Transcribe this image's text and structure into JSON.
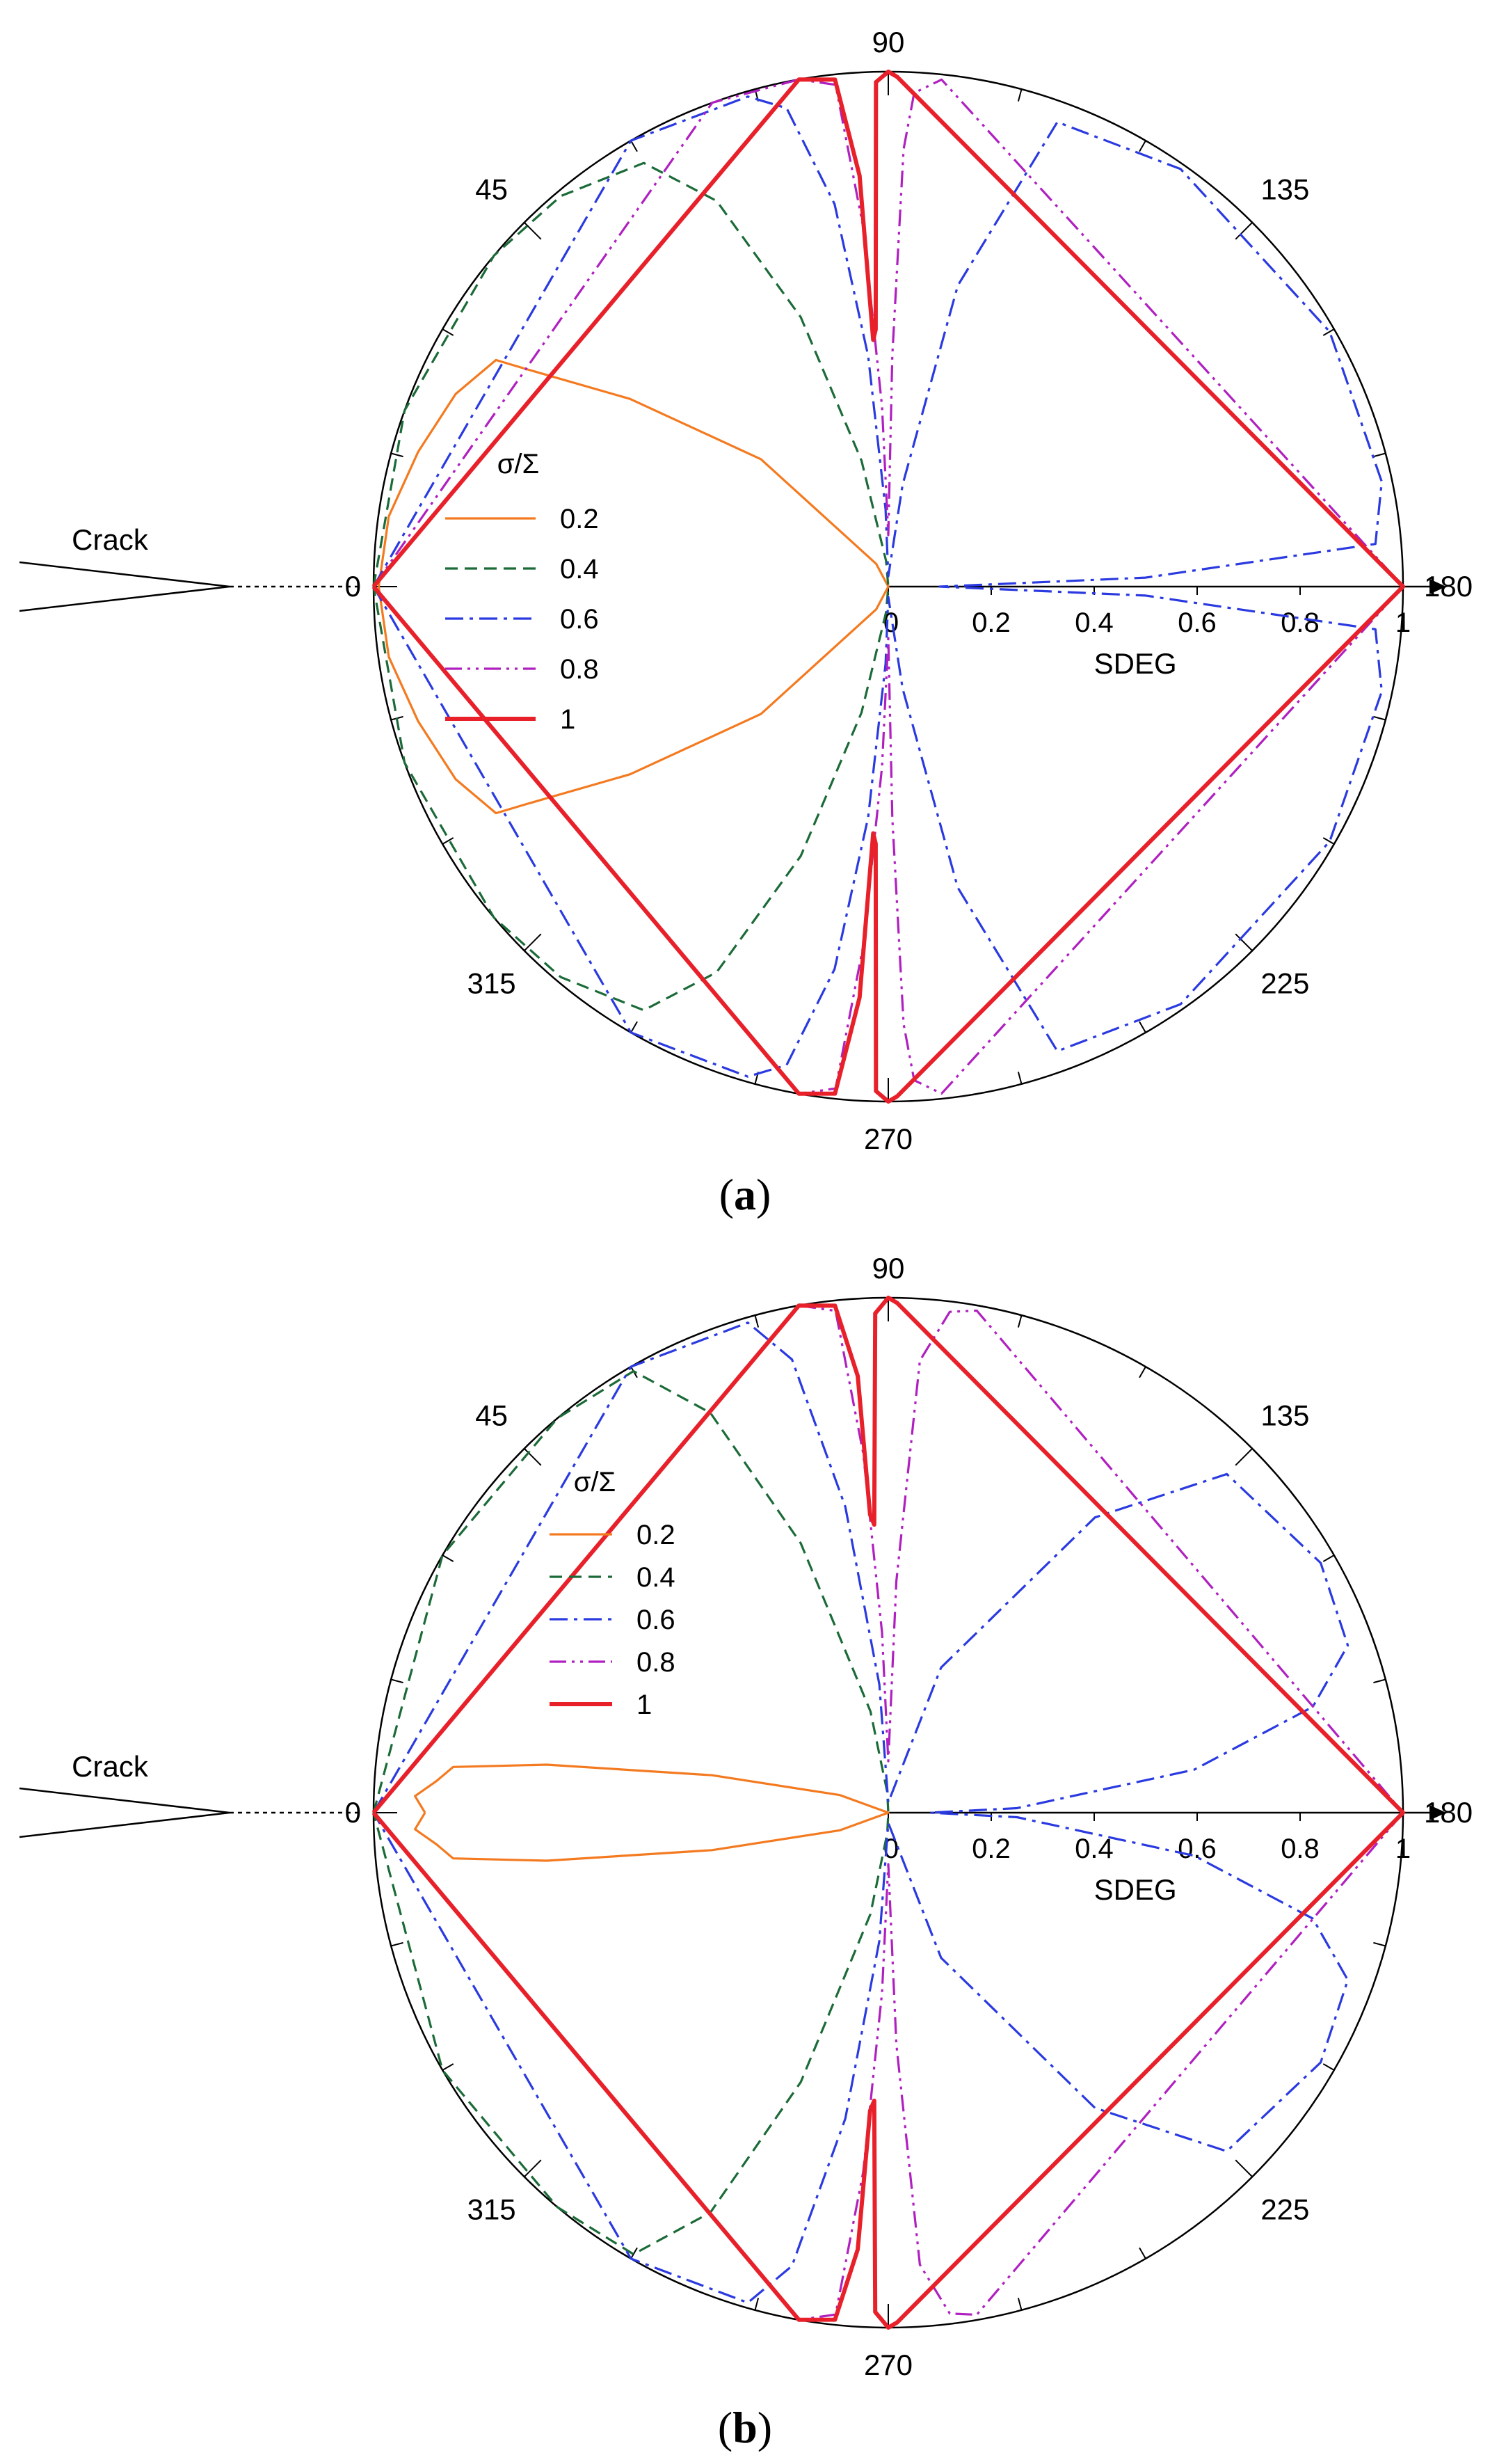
{
  "figure": {
    "panel_a_label": "a",
    "panel_b_label": "b"
  },
  "chart_data": [
    {
      "panel": "a",
      "type": "line",
      "coordinate_system": "polar",
      "angle_unit": "deg",
      "angle_ticks": [
        "0",
        "45",
        "90",
        "135",
        "180",
        "225",
        "270",
        "315"
      ],
      "radial_label": "SDEG",
      "radial_ticks": [
        "0",
        "0.2",
        "0.4",
        "0.6",
        "0.8",
        "1"
      ],
      "radial_range": [
        0,
        1
      ],
      "legend_title": "σ/Σ",
      "legend_position": "left",
      "crack_label": "Crack",
      "series": [
        {
          "name": "0.2",
          "color": "#F47A20",
          "dash": "solid",
          "points": [
            [
              0,
              0.99
            ],
            [
              8,
              0.98
            ],
            [
              16,
              0.95
            ],
            [
              24,
              0.92
            ],
            [
              30,
              0.88
            ],
            [
              31,
              0.82
            ],
            [
              36,
              0.62
            ],
            [
              45,
              0.35
            ],
            [
              62,
              0.05
            ],
            [
              90,
              0
            ],
            [
              270,
              0
            ],
            [
              298,
              0.05
            ],
            [
              315,
              0.35
            ],
            [
              324,
              0.62
            ],
            [
              329,
              0.82
            ],
            [
              330,
              0.88
            ],
            [
              336,
              0.92
            ],
            [
              344,
              0.95
            ],
            [
              352,
              0.98
            ],
            [
              360,
              0.99
            ]
          ]
        },
        {
          "name": "0.4",
          "color": "#1B6B38",
          "dash": "dashed",
          "points": [
            [
              0,
              1.0
            ],
            [
              20,
              1.0
            ],
            [
              40,
              1.0
            ],
            [
              50,
              0.99
            ],
            [
              60,
              0.95
            ],
            [
              66,
              0.82
            ],
            [
              72,
              0.55
            ],
            [
              78,
              0.25
            ],
            [
              85,
              0.05
            ],
            [
              90,
              0
            ],
            [
              270,
              0
            ],
            [
              275,
              0.05
            ],
            [
              282,
              0.25
            ],
            [
              288,
              0.55
            ],
            [
              294,
              0.82
            ],
            [
              300,
              0.95
            ],
            [
              310,
              0.99
            ],
            [
              320,
              1.0
            ],
            [
              340,
              1.0
            ],
            [
              360,
              1.0
            ]
          ]
        },
        {
          "name": "0.6",
          "color": "#2A3AE0",
          "dash": "dashdot",
          "points": [
            [
              0,
              1.0
            ],
            [
              60,
              1.0
            ],
            [
              74,
              0.99
            ],
            [
              78,
              0.95
            ],
            [
              82,
              0.75
            ],
            [
              85,
              0.45
            ],
            [
              88,
              0.15
            ],
            [
              90,
              0.02
            ],
            [
              98,
              0.2
            ],
            [
              103,
              0.6
            ],
            [
              110,
              0.96
            ],
            [
              125,
              0.99
            ],
            [
              150,
              0.99
            ],
            [
              168,
              0.98
            ],
            [
              175,
              0.95
            ],
            [
              178,
              0.5
            ],
            [
              180,
              0.1
            ],
            [
              182,
              0.5
            ],
            [
              185,
              0.95
            ],
            [
              192,
              0.98
            ],
            [
              210,
              0.99
            ],
            [
              235,
              0.99
            ],
            [
              250,
              0.96
            ],
            [
              257,
              0.6
            ],
            [
              262,
              0.2
            ],
            [
              270,
              0.02
            ],
            [
              272,
              0.15
            ],
            [
              275,
              0.45
            ],
            [
              278,
              0.75
            ],
            [
              282,
              0.95
            ],
            [
              286,
              0.99
            ],
            [
              300,
              1.0
            ],
            [
              360,
              1.0
            ]
          ]
        },
        {
          "name": "0.8",
          "color": "#B020C0",
          "dash": "dashdotdot",
          "points": [
            [
              0,
              1.0
            ],
            [
              70,
              1.0
            ],
            [
              80,
              1.0
            ],
            [
              84,
              0.98
            ],
            [
              86,
              0.7
            ],
            [
              88,
              0.35
            ],
            [
              90,
              0.1
            ],
            [
              91,
              0.45
            ],
            [
              92,
              0.85
            ],
            [
              93,
              0.96
            ],
            [
              96,
              0.99
            ],
            [
              180,
              1.0
            ],
            [
              264,
              0.99
            ],
            [
              267,
              0.96
            ],
            [
              268,
              0.85
            ],
            [
              269,
              0.45
            ],
            [
              270,
              0.1
            ],
            [
              272,
              0.35
            ],
            [
              274,
              0.7
            ],
            [
              276,
              0.98
            ],
            [
              280,
              1.0
            ],
            [
              360,
              1.0
            ]
          ]
        },
        {
          "name": "1",
          "color": "#E8202A",
          "dash": "solid",
          "points": [
            [
              0,
              1.0
            ],
            [
              80,
              1.0
            ],
            [
              84,
              0.99
            ],
            [
              86,
              0.8
            ],
            [
              86.5,
              0.48
            ],
            [
              87.2,
              0.5
            ],
            [
              88.6,
              0.98
            ],
            [
              90,
              1.0
            ],
            [
              91,
              0.99
            ],
            [
              180,
              1.0
            ],
            [
              269,
              0.99
            ],
            [
              270,
              1.0
            ],
            [
              271.4,
              0.98
            ],
            [
              272.8,
              0.5
            ],
            [
              273.5,
              0.48
            ],
            [
              274,
              0.8
            ],
            [
              276,
              0.99
            ],
            [
              280,
              1.0
            ],
            [
              360,
              1.0
            ]
          ]
        }
      ]
    },
    {
      "panel": "b",
      "type": "line",
      "coordinate_system": "polar",
      "angle_unit": "deg",
      "angle_ticks": [
        "0",
        "45",
        "90",
        "135",
        "180",
        "225",
        "270",
        "315"
      ],
      "radial_label": "SDEG",
      "radial_ticks": [
        "0",
        "0.2",
        "0.4",
        "0.6",
        "0.8",
        "1"
      ],
      "radial_range": [
        0,
        1
      ],
      "legend_title": "σ/Σ",
      "legend_position": "upper-left",
      "crack_label": "Crack",
      "series": [
        {
          "name": "0.2",
          "color": "#F47A20",
          "dash": "solid",
          "points": [
            [
              0,
              0.9
            ],
            [
              2,
              0.92
            ],
            [
              4,
              0.88
            ],
            [
              6,
              0.85
            ],
            [
              8,
              0.67
            ],
            [
              12,
              0.35
            ],
            [
              20,
              0.1
            ],
            [
              90,
              0
            ],
            [
              270,
              0
            ],
            [
              340,
              0.1
            ],
            [
              348,
              0.35
            ],
            [
              352,
              0.67
            ],
            [
              354,
              0.85
            ],
            [
              356,
              0.88
            ],
            [
              358,
              0.92
            ],
            [
              360,
              0.9
            ]
          ]
        },
        {
          "name": "0.4",
          "color": "#1B6B38",
          "dash": "dashed",
          "points": [
            [
              0,
              1.0
            ],
            [
              30,
              1.0
            ],
            [
              50,
              1.0
            ],
            [
              60,
              0.99
            ],
            [
              66,
              0.85
            ],
            [
              72,
              0.55
            ],
            [
              80,
              0.2
            ],
            [
              87,
              0.04
            ],
            [
              90,
              0
            ],
            [
              270,
              0
            ],
            [
              273,
              0.04
            ],
            [
              280,
              0.2
            ],
            [
              288,
              0.55
            ],
            [
              294,
              0.85
            ],
            [
              300,
              0.99
            ],
            [
              310,
              1.0
            ],
            [
              330,
              1.0
            ],
            [
              360,
              1.0
            ]
          ]
        },
        {
          "name": "0.6",
          "color": "#2A3AE0",
          "dash": "dashdot",
          "points": [
            [
              0,
              1.0
            ],
            [
              60,
              1.0
            ],
            [
              74,
              0.99
            ],
            [
              78,
              0.9
            ],
            [
              82,
              0.6
            ],
            [
              86,
              0.25
            ],
            [
              90,
              0.02
            ],
            [
              110,
              0.3
            ],
            [
              125,
              0.7
            ],
            [
              135,
              0.93
            ],
            [
              150,
              0.97
            ],
            [
              160,
              0.95
            ],
            [
              166,
              0.85
            ],
            [
              172,
              0.6
            ],
            [
              178,
              0.25
            ],
            [
              180,
              0.08
            ],
            [
              182,
              0.25
            ],
            [
              188,
              0.6
            ],
            [
              194,
              0.85
            ],
            [
              200,
              0.95
            ],
            [
              210,
              0.97
            ],
            [
              225,
              0.93
            ],
            [
              235,
              0.7
            ],
            [
              250,
              0.3
            ],
            [
              270,
              0.02
            ],
            [
              274,
              0.25
            ],
            [
              278,
              0.6
            ],
            [
              282,
              0.9
            ],
            [
              286,
              0.99
            ],
            [
              300,
              1.0
            ],
            [
              360,
              1.0
            ]
          ]
        },
        {
          "name": "0.8",
          "color": "#B020C0",
          "dash": "dashdotdot",
          "points": [
            [
              0,
              1.0
            ],
            [
              80,
              1.0
            ],
            [
              84,
              0.98
            ],
            [
              86,
              0.7
            ],
            [
              88,
              0.35
            ],
            [
              90,
              0.1
            ],
            [
              92,
              0.45
            ],
            [
              94,
              0.88
            ],
            [
              97,
              0.98
            ],
            [
              100,
              0.99
            ],
            [
              180,
              1.0
            ],
            [
              260,
              0.99
            ],
            [
              263,
              0.98
            ],
            [
              266,
              0.88
            ],
            [
              268,
              0.45
            ],
            [
              270,
              0.1
            ],
            [
              272,
              0.35
            ],
            [
              274,
              0.7
            ],
            [
              276,
              0.98
            ],
            [
              280,
              1.0
            ],
            [
              360,
              1.0
            ]
          ]
        },
        {
          "name": "1",
          "color": "#E8202A",
          "dash": "solid",
          "points": [
            [
              0,
              1.0
            ],
            [
              80,
              1.0
            ],
            [
              84,
              0.99
            ],
            [
              86,
              0.85
            ],
            [
              86.5,
              0.58
            ],
            [
              87.2,
              0.56
            ],
            [
              88.5,
              0.97
            ],
            [
              90,
              1.0
            ],
            [
              91,
              0.99
            ],
            [
              180,
              1.0
            ],
            [
              269,
              0.99
            ],
            [
              270,
              1.0
            ],
            [
              271.5,
              0.97
            ],
            [
              272.8,
              0.56
            ],
            [
              273.5,
              0.58
            ],
            [
              274,
              0.85
            ],
            [
              276,
              0.99
            ],
            [
              280,
              1.0
            ],
            [
              360,
              1.0
            ]
          ]
        }
      ]
    }
  ]
}
